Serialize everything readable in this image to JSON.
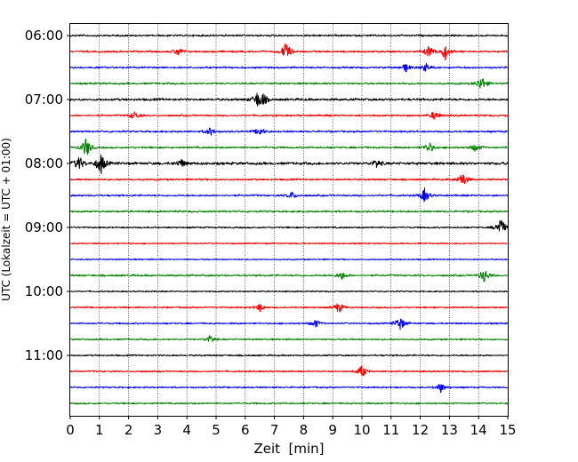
{
  "chart_data": {
    "type": "line",
    "title": "",
    "xlabel": "Zeit  [min]",
    "ylabel": "UTC (Lokalzeit = UTC + 01:00)",
    "xlim": [
      0,
      15
    ],
    "x_ticks": [
      0,
      1,
      2,
      3,
      4,
      5,
      6,
      7,
      8,
      9,
      10,
      11,
      12,
      13,
      14,
      15
    ],
    "y_tick_labels": [
      "06:00",
      "07:00",
      "08:00",
      "09:00",
      "10:00",
      "11:00"
    ],
    "vertical_grid": true,
    "row_colors": [
      "#000000",
      "#ff0000",
      "#0000ff",
      "#008000"
    ],
    "rows": [
      {
        "time": "06:00",
        "color": "black",
        "events": [],
        "amplitude": 0.35
      },
      {
        "time": "06:15",
        "color": "red",
        "events": [
          {
            "t": 3.7,
            "a": 0.6
          },
          {
            "t": 7.4,
            "a": 1.4
          },
          {
            "t": 12.3,
            "a": 0.9
          },
          {
            "t": 12.85,
            "a": 1.1
          }
        ],
        "amplitude": 0.35
      },
      {
        "time": "06:30",
        "color": "blue",
        "events": [
          {
            "t": 11.5,
            "a": 0.6
          },
          {
            "t": 12.2,
            "a": 0.6
          }
        ],
        "amplitude": 0.35
      },
      {
        "time": "06:45",
        "color": "green",
        "events": [
          {
            "t": 14.1,
            "a": 1.1
          }
        ],
        "amplitude": 0.35
      },
      {
        "time": "07:00",
        "color": "black",
        "events": [
          {
            "t": 6.4,
            "a": 0.9
          },
          {
            "t": 6.6,
            "a": 0.8
          }
        ],
        "amplitude": 0.45
      },
      {
        "time": "07:15",
        "color": "red",
        "events": [
          {
            "t": 2.2,
            "a": 0.6
          },
          {
            "t": 12.5,
            "a": 0.7
          }
        ],
        "amplitude": 0.35
      },
      {
        "time": "07:30",
        "color": "blue",
        "events": [
          {
            "t": 4.8,
            "a": 0.6
          },
          {
            "t": 6.5,
            "a": 0.6
          }
        ],
        "amplitude": 0.35
      },
      {
        "time": "07:45",
        "color": "green",
        "events": [
          {
            "t": 0.55,
            "a": 1.5
          },
          {
            "t": 12.3,
            "a": 0.8
          },
          {
            "t": 13.9,
            "a": 0.6
          }
        ],
        "amplitude": 0.35
      },
      {
        "time": "08:00",
        "color": "black",
        "events": [
          {
            "t": 0.3,
            "a": 1.1
          },
          {
            "t": 1.05,
            "a": 1.6
          },
          {
            "t": 3.8,
            "a": 0.6
          },
          {
            "t": 10.5,
            "a": 0.6
          }
        ],
        "amplitude": 0.5
      },
      {
        "time": "08:15",
        "color": "red",
        "events": [
          {
            "t": 13.45,
            "a": 1.1
          }
        ],
        "amplitude": 0.35
      },
      {
        "time": "08:30",
        "color": "blue",
        "events": [
          {
            "t": 7.6,
            "a": 0.5
          },
          {
            "t": 12.15,
            "a": 1.0
          }
        ],
        "amplitude": 0.35
      },
      {
        "time": "08:45",
        "color": "green",
        "events": [],
        "amplitude": 0.35
      },
      {
        "time": "09:00",
        "color": "black",
        "events": [
          {
            "t": 14.75,
            "a": 1.5
          }
        ],
        "amplitude": 0.3
      },
      {
        "time": "09:15",
        "color": "red",
        "events": [],
        "amplitude": 0.25
      },
      {
        "time": "09:30",
        "color": "blue",
        "events": [],
        "amplitude": 0.25
      },
      {
        "time": "09:45",
        "color": "green",
        "events": [
          {
            "t": 9.3,
            "a": 0.6
          },
          {
            "t": 14.2,
            "a": 1.0
          }
        ],
        "amplitude": 0.35
      },
      {
        "time": "10:00",
        "color": "black",
        "events": [],
        "amplitude": 0.25
      },
      {
        "time": "10:15",
        "color": "red",
        "events": [
          {
            "t": 6.5,
            "a": 0.6
          },
          {
            "t": 9.2,
            "a": 0.8
          }
        ],
        "amplitude": 0.3
      },
      {
        "time": "10:30",
        "color": "blue",
        "events": [
          {
            "t": 8.4,
            "a": 0.6
          },
          {
            "t": 11.3,
            "a": 1.1
          }
        ],
        "amplitude": 0.3
      },
      {
        "time": "10:45",
        "color": "green",
        "events": [
          {
            "t": 4.8,
            "a": 0.6
          }
        ],
        "amplitude": 0.3
      },
      {
        "time": "11:00",
        "color": "black",
        "events": [],
        "amplitude": 0.3
      },
      {
        "time": "11:15",
        "color": "red",
        "events": [
          {
            "t": 10.0,
            "a": 0.9
          }
        ],
        "amplitude": 0.3
      },
      {
        "time": "11:30",
        "color": "blue",
        "events": [
          {
            "t": 12.7,
            "a": 0.7
          }
        ],
        "amplitude": 0.3
      },
      {
        "time": "11:45",
        "color": "green",
        "events": [],
        "amplitude": 0.3
      }
    ]
  }
}
